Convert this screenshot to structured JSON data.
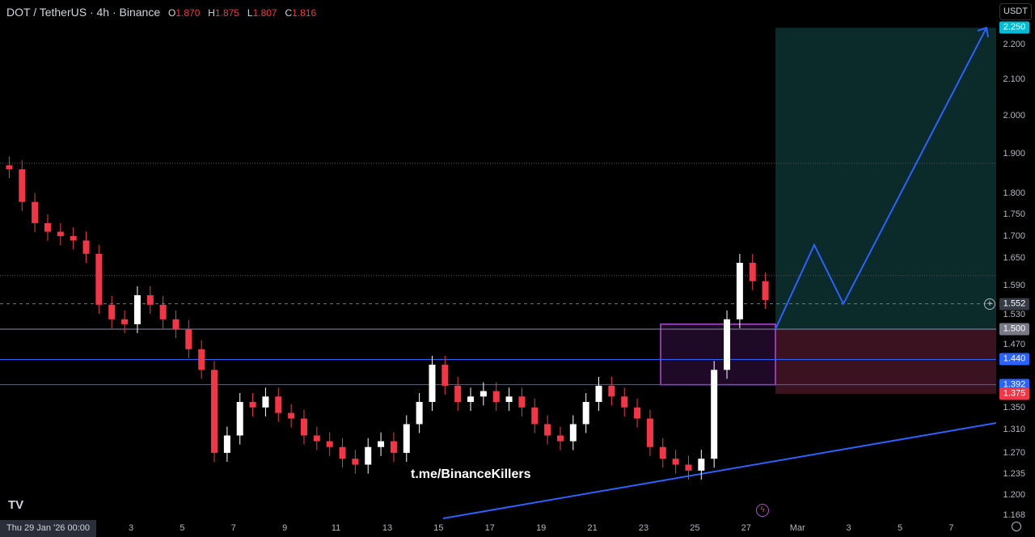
{
  "header": {
    "symbol": "DOT / TetherUS · 4h · Binance",
    "o_label": "O",
    "o": "1.870",
    "h_label": "H",
    "h": "1.875",
    "l_label": "L",
    "l": "1.807",
    "c_label": "C",
    "c": "1.816"
  },
  "currency_button": "USDT ⌄",
  "price_axis": {
    "scale": "log",
    "ticks": [
      "2.200",
      "2.100",
      "2.000",
      "1.900",
      "1.800",
      "1.750",
      "1.700",
      "1.650",
      "1.590",
      "1.530",
      "1.470",
      "1.350",
      "1.310",
      "1.270",
      "1.235",
      "1.200",
      "1.168"
    ]
  },
  "price_tags": [
    {
      "value": "2.250",
      "color": "#00bcd4"
    },
    {
      "value": "1.552",
      "color": "#363a45"
    },
    {
      "value": "1.500",
      "color": "#787b86"
    },
    {
      "value": "1.440",
      "color": "#2962ff"
    },
    {
      "value": "1.392",
      "color": "#2962ff"
    },
    {
      "value": "1.375",
      "color": "#f23645"
    }
  ],
  "time_axis": {
    "start_label": "Thu 29 Jan '26   00:00",
    "ticks": [
      "3",
      "5",
      "7",
      "9",
      "11",
      "13",
      "15",
      "17",
      "19",
      "21",
      "23",
      "25",
      "27",
      "Mar",
      "3",
      "5",
      "7"
    ]
  },
  "watermark": "t.me/BinanceKillers",
  "logo": "TV",
  "colors": {
    "up": "#ffffff",
    "down": "#f23645",
    "target_zone": "#0b2b2b",
    "stop_zone": "#3a1220",
    "box": "#b04ad8",
    "lines": "#2962ff"
  },
  "candles_half_day_close": [
    1.86,
    1.78,
    1.73,
    1.71,
    1.7,
    1.69,
    1.66,
    1.55,
    1.52,
    1.51,
    1.57,
    1.55,
    1.52,
    1.5,
    1.46,
    1.42,
    1.27,
    1.3,
    1.36,
    1.35,
    1.37,
    1.34,
    1.33,
    1.3,
    1.29,
    1.28,
    1.26,
    1.25,
    1.28,
    1.29,
    1.27,
    1.32,
    1.36,
    1.43,
    1.39,
    1.36,
    1.37,
    1.38,
    1.36,
    1.37,
    1.35,
    1.32,
    1.3,
    1.29,
    1.32,
    1.36,
    1.39,
    1.37,
    1.35,
    1.33,
    1.28,
    1.26,
    1.25,
    1.24,
    1.26,
    1.42,
    1.52,
    1.64,
    1.6,
    1.56
  ],
  "levels": {
    "last": 1.552,
    "entry": 1.5,
    "target": 2.25,
    "stop": 1.375,
    "h1": 1.44,
    "h2": 1.392,
    "box_top": 1.51,
    "box_bottom": 1.392,
    "dotted": [
      1.875,
      1.612
    ]
  },
  "projection_path": [
    1.5,
    1.68,
    1.552,
    2.25
  ]
}
